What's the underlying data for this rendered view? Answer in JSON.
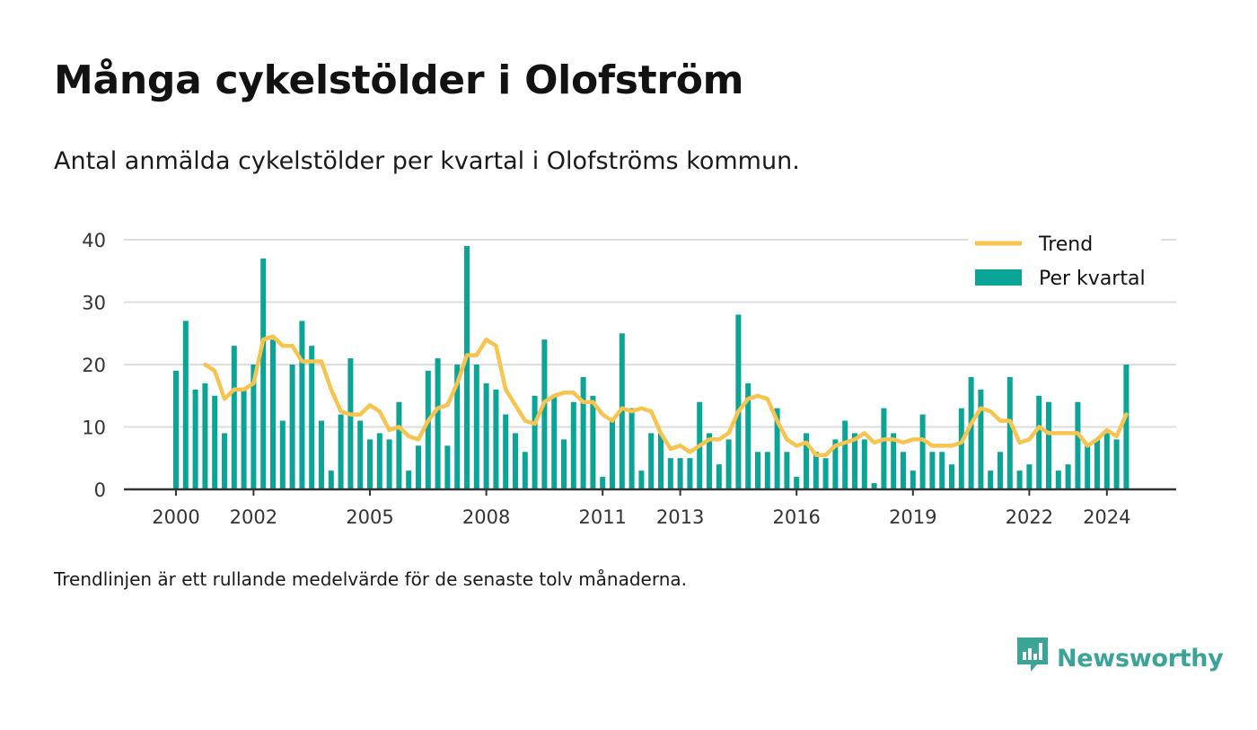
{
  "title": "Många cykelstölder i Olofström",
  "subtitle": "Antal anmälda cykelstölder per kvartal i Olofströms kommun.",
  "footnote": "Trendlinjen är ett rullande medelvärde för de senaste tolv månaderna.",
  "brand": {
    "name": "Newsworthy",
    "icon": "newsworthy-bar-chart-icon",
    "color": "#3aa597"
  },
  "chart_data": {
    "type": "bar",
    "x_unit": "quarter",
    "x_start": "2000-Q1",
    "ylim": [
      0,
      40
    ],
    "yticks": [
      0,
      10,
      20,
      30,
      40
    ],
    "xticks": [
      "2000",
      "2002",
      "2005",
      "2008",
      "2011",
      "2013",
      "2016",
      "2019",
      "2022",
      "2024"
    ],
    "grid": true,
    "legend_position": "top-right",
    "colors": {
      "bars": "#0aa596",
      "trend": "#f6c44f",
      "grid": "#dddddd",
      "axis": "#333333"
    },
    "series": [
      {
        "name": "Per kvartal",
        "type": "bar",
        "values": [
          19,
          27,
          16,
          17,
          15,
          9,
          23,
          16,
          20,
          37,
          24,
          11,
          20,
          27,
          23,
          11,
          3,
          12,
          21,
          11,
          8,
          9,
          8,
          14,
          3,
          7,
          19,
          21,
          7,
          20,
          39,
          20,
          17,
          16,
          12,
          9,
          6,
          15,
          24,
          15,
          8,
          14,
          18,
          15,
          2,
          11,
          25,
          13,
          3,
          9,
          9,
          5,
          5,
          5,
          14,
          9,
          4,
          8,
          28,
          17,
          6,
          6,
          13,
          6,
          2,
          9,
          6,
          5,
          8,
          11,
          9,
          8,
          1,
          13,
          9,
          6,
          3,
          12,
          6,
          6,
          4,
          13,
          18,
          16,
          3,
          6,
          18,
          3,
          4,
          15,
          14,
          3,
          4,
          14,
          7,
          8,
          9,
          8,
          20
        ]
      },
      {
        "name": "Trend",
        "type": "line",
        "start_index": 3,
        "values": [
          20,
          19,
          14.5,
          16,
          16,
          17,
          24,
          24.5,
          23,
          23,
          20.5,
          20.5,
          20.5,
          16,
          12.5,
          12,
          12,
          13.5,
          12.5,
          9.5,
          10,
          8.5,
          8,
          11,
          13,
          13.5,
          17,
          21.5,
          21.5,
          24,
          23,
          16,
          13.5,
          11,
          10.5,
          14,
          15,
          15.5,
          15.5,
          14,
          14,
          12,
          11,
          13,
          12.5,
          13,
          12.5,
          9,
          6.5,
          7,
          6,
          7,
          8,
          8,
          9,
          12.5,
          14.5,
          15,
          14.5,
          11,
          8,
          7,
          7.5,
          5.5,
          5.5,
          7,
          7.5,
          8,
          9,
          7.5,
          8,
          8,
          7.5,
          8,
          8,
          7,
          7,
          7,
          7.5,
          10.5,
          13,
          12.5,
          11,
          11,
          7.5,
          8,
          10,
          9,
          9,
          9,
          9,
          7,
          8,
          9.5,
          8.5,
          12
        ]
      }
    ]
  }
}
